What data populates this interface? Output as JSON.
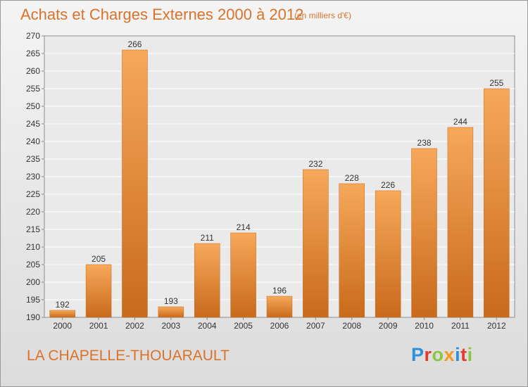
{
  "header": {
    "title": "Achats et Charges Externes 2000 à 2012",
    "subtitle": "(en milliers d'€)"
  },
  "footer": {
    "commune": "LA CHAPELLE-THOUARAULT",
    "logo_letters": [
      "P",
      "r",
      "o",
      "x",
      "i",
      "t",
      "i"
    ],
    "logo_colors": [
      "#2f8fd8",
      "#e33b2e",
      "#8cc63f",
      "#f29a1f",
      "#2f8fd8",
      "#e33b2e",
      "#8cc63f"
    ]
  },
  "chart_data": {
    "type": "bar",
    "title": "Achats et Charges Externes 2000 à 2012",
    "subtitle": "(en milliers d'€)",
    "categories": [
      "2000",
      "2001",
      "2002",
      "2003",
      "2004",
      "2005",
      "2006",
      "2007",
      "2008",
      "2009",
      "2010",
      "2011",
      "2012"
    ],
    "values": [
      192,
      205,
      266,
      193,
      211,
      214,
      196,
      232,
      228,
      226,
      238,
      244,
      255
    ],
    "ylim": [
      190,
      270
    ],
    "yticks": [
      190,
      195,
      200,
      205,
      210,
      215,
      220,
      225,
      230,
      235,
      240,
      245,
      250,
      255,
      260,
      265,
      270
    ],
    "grid": true,
    "bar_color": "#e8832f",
    "bar_light": "#f7a85a",
    "bar_dark": "#c86a1c"
  }
}
